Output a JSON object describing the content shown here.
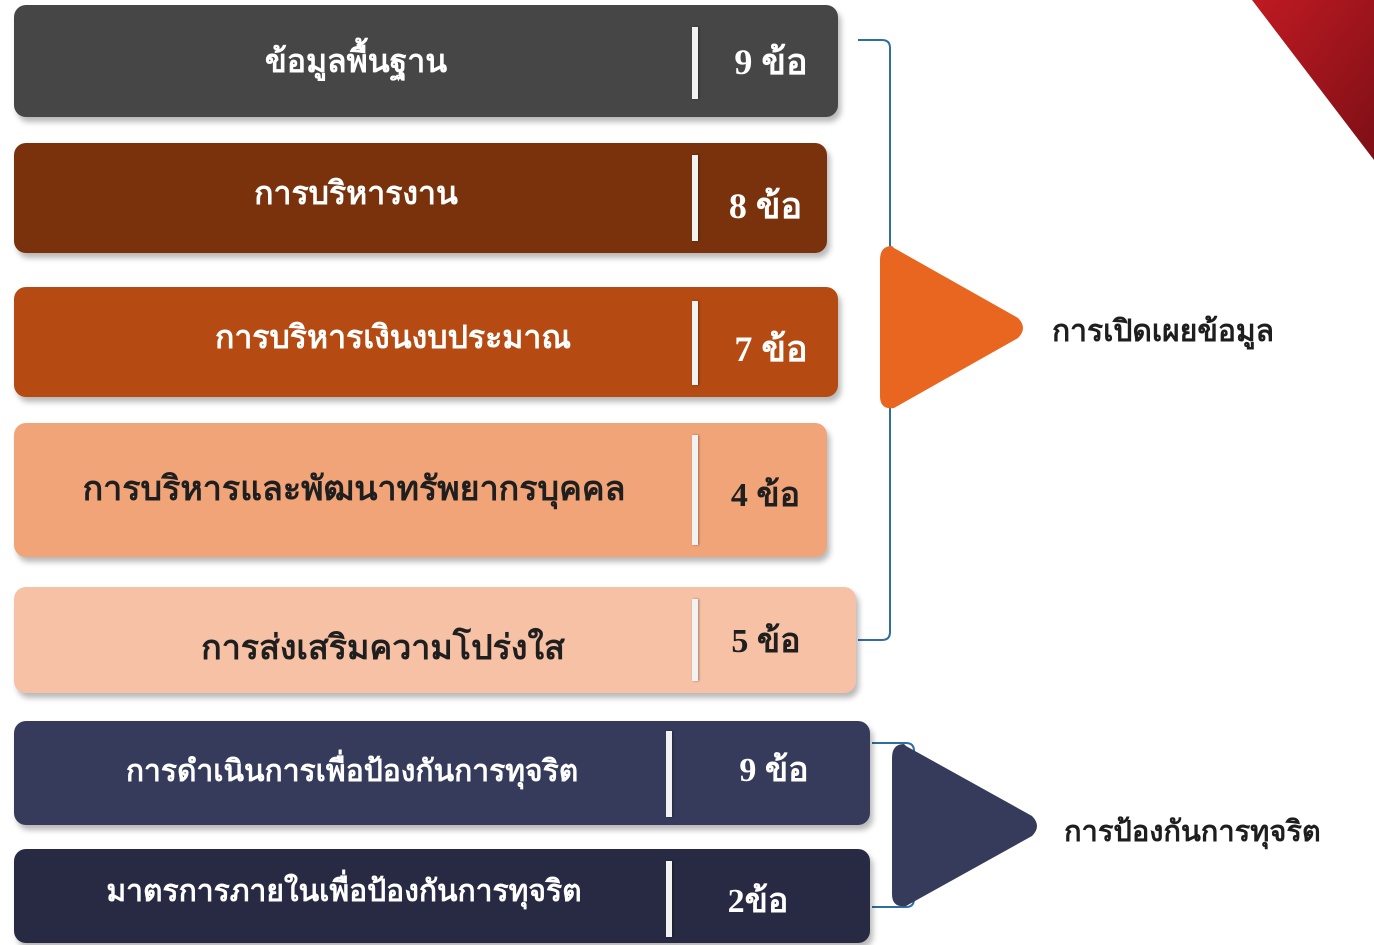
{
  "categories": [
    {
      "label": "ข้อมูลพื้นฐาน",
      "count": "9 ข้อ",
      "color": "#464646",
      "text_color": "#ffffff"
    },
    {
      "label": "การบริหารงาน",
      "count": "8 ข้อ",
      "color": "#7a320d",
      "text_color": "#ffffff"
    },
    {
      "label": "การบริหารเงินงบประมาณ",
      "count": "7 ข้อ",
      "color": "#b54a12",
      "text_color": "#ffffff"
    },
    {
      "label": "การบริหารและพัฒนาทรัพยากรบุคคล",
      "count": "4 ข้อ",
      "color": "#f2a479",
      "text_color": "#1f1f1f"
    },
    {
      "label": "การส่งเสริมความโปร่งใส",
      "count": "5 ข้อ",
      "color": "#f6c1a4",
      "text_color": "#1f1f1f"
    },
    {
      "label": "การดำเนินการเพื่อป้องกันการทุจริต",
      "count": "9 ข้อ",
      "color": "#363b5c",
      "text_color": "#ffffff"
    },
    {
      "label": "มาตรการภายในเพื่อป้องกันการทุจริต",
      "count": "2ข้อ",
      "color": "#272a42",
      "text_color": "#ffffff"
    }
  ],
  "groups": [
    {
      "label": "การเปิดเผยข้อมูล",
      "color": "#e8661f"
    },
    {
      "label": "การป้องกันการทุจริต",
      "color": "#363b5c"
    }
  ],
  "accent_colors": {
    "bracket": "#2f6f9f",
    "corner": "#a3151f"
  }
}
